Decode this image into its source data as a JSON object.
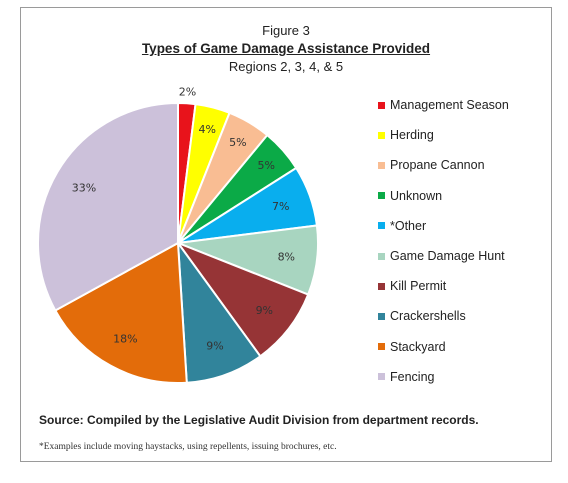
{
  "figure_label": "Figure 3",
  "chart_data": {
    "type": "pie",
    "title": "Types of Game Damage Assistance Provided",
    "subtitle": "Regions 2, 3, 4, & 5",
    "slices": [
      {
        "label": "Management Season",
        "value": 2,
        "display": "2%",
        "color": "#e8131b"
      },
      {
        "label": "Herding",
        "value": 4,
        "display": "4%",
        "color": "#ffff00"
      },
      {
        "label": "Propane Cannon",
        "value": 5,
        "display": "5%",
        "color": "#f9bd93"
      },
      {
        "label": "Unknown",
        "value": 5,
        "display": "5%",
        "color": "#0baa47"
      },
      {
        "label": "*Other",
        "value": 7,
        "display": "7%",
        "color": "#09aeee"
      },
      {
        "label": "Game Damage Hunt",
        "value": 8,
        "display": "8%",
        "color": "#a8d5c0"
      },
      {
        "label": "Kill Permit",
        "value": 9,
        "display": "9%",
        "color": "#963436"
      },
      {
        "label": "Crackershells",
        "value": 9,
        "display": "9%",
        "color": "#31849b"
      },
      {
        "label": "Stackyard",
        "value": 18,
        "display": "18%",
        "color": "#e36c0a"
      },
      {
        "label": "Fencing",
        "value": 33,
        "display": "33%",
        "color": "#ccc1da"
      }
    ],
    "legend_position": "right"
  },
  "source": "Source:  Compiled by the Legislative Audit Division from department records.",
  "footnote": "*Examples include moving haystacks, using repellents, issuing brochures, etc."
}
